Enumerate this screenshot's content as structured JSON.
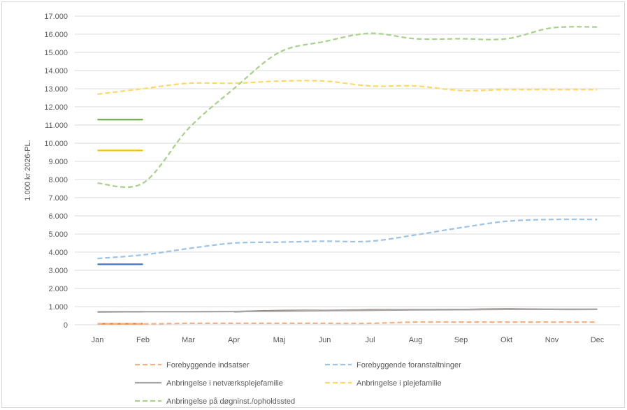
{
  "chart_data": {
    "type": "line",
    "ylabel": "1.000 kr 2026-PL.",
    "ylim": [
      0,
      17000
    ],
    "ytick_step": 1000,
    "categories": [
      "Jan",
      "Feb",
      "Mar",
      "Apr",
      "Maj",
      "Jun",
      "Jul",
      "Aug",
      "Sep",
      "Okt",
      "Nov",
      "Dec"
    ],
    "grid": true,
    "legend_position": "bottom",
    "series": [
      {
        "name": "Forebyggende indsatser",
        "style": "dashed",
        "color": "#f4b183",
        "values": [
          50,
          50,
          80,
          80,
          80,
          80,
          80,
          150,
          150,
          150,
          150,
          150
        ]
      },
      {
        "name": "Forebyggende foranstaltninger",
        "style": "dashed",
        "color": "#9dc3e6",
        "values": [
          3650,
          3850,
          4200,
          4500,
          4550,
          4600,
          4600,
          4950,
          5350,
          5700,
          5800,
          5800
        ]
      },
      {
        "name": "Anbringelse i netværksplejefamilie",
        "style": "solid",
        "color": "#a6a6a6",
        "values": [
          700,
          720,
          720,
          730,
          750,
          780,
          800,
          820,
          830,
          850,
          850,
          850
        ]
      },
      {
        "name": "Anbringelse i plejefamilie",
        "style": "dashed",
        "color": "#ffd966",
        "values": [
          12700,
          13000,
          13300,
          13300,
          13420,
          13420,
          13150,
          13150,
          12900,
          12950,
          12950,
          12950
        ]
      },
      {
        "name": "Anbringelse på døgninst./opholdssted",
        "style": "dashed",
        "color": "#a9d18e",
        "values": [
          7800,
          7800,
          10800,
          13000,
          15000,
          15600,
          16050,
          15750,
          15750,
          15750,
          16350,
          16400
        ]
      }
    ],
    "extra_lines": [
      {
        "color": "#8c6d62",
        "style": "solid",
        "values": [
          null,
          null,
          null,
          720,
          780,
          790,
          820,
          830,
          840,
          870,
          850,
          850
        ]
      },
      {
        "color": "#ed7d31",
        "style": "solid",
        "values": [
          60,
          60,
          null,
          null,
          null,
          null,
          null,
          null,
          null,
          null,
          null,
          null
        ]
      },
      {
        "color": "#4472c4",
        "style": "solid",
        "values": [
          3330,
          3330,
          null,
          null,
          null,
          null,
          null,
          null,
          null,
          null,
          null,
          null
        ]
      },
      {
        "color": "#a6a6a6",
        "style": "solid",
        "values": [
          720,
          720,
          null,
          null,
          null,
          null,
          null,
          null,
          null,
          null,
          null,
          null
        ]
      },
      {
        "color": "#ffc000",
        "style": "solid",
        "values": [
          9600,
          9600,
          null,
          null,
          null,
          null,
          null,
          null,
          null,
          null,
          null,
          null
        ]
      },
      {
        "color": "#70ad47",
        "style": "solid",
        "values": [
          11300,
          11300,
          null,
          null,
          null,
          null,
          null,
          null,
          null,
          null,
          null,
          null
        ]
      }
    ]
  }
}
